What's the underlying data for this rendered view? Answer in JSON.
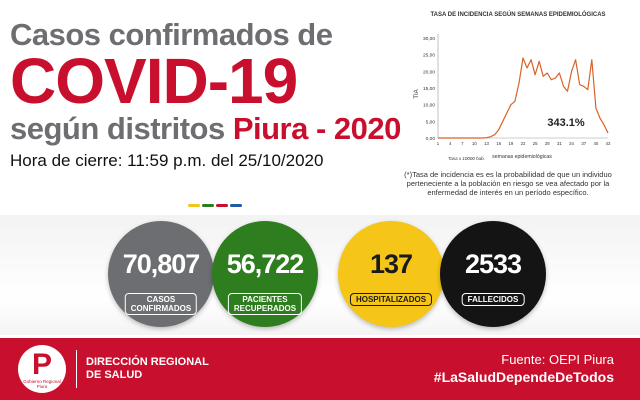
{
  "headline": {
    "line1": "Casos confirmados de",
    "line2": "COVID-19",
    "line3_prefix": "según distritos",
    "line3_highlight": "Piura - 2020",
    "closing_time": "Hora de cierre: 11:59 p.m. del 25/10/2020"
  },
  "chart_data": {
    "type": "line",
    "title": "TASA DE INCIDENCIA SEGÚN SEMANAS EPIDEMIOLÓGICAS",
    "xlabel": "semanas epidemiológicas",
    "ylabel": "TIA",
    "note": "Tasa x 10000 hab.",
    "annotation": "343.1%",
    "ylim": [
      0,
      30
    ],
    "y_ticks": [
      "0,00",
      "5,00",
      "10,00",
      "15,00",
      "20,00",
      "25,00",
      "30,00"
    ],
    "x_ticks": [
      "1",
      "4",
      "7",
      "10",
      "13",
      "16",
      "19",
      "22",
      "25",
      "28",
      "31",
      "34",
      "37",
      "40",
      "43"
    ],
    "x": [
      1,
      2,
      3,
      4,
      5,
      6,
      7,
      8,
      9,
      10,
      11,
      12,
      13,
      14,
      15,
      16,
      17,
      18,
      19,
      20,
      21,
      22,
      23,
      24,
      25,
      26,
      27,
      28,
      29,
      30,
      31,
      32,
      33,
      34,
      35,
      36,
      37,
      38,
      39,
      40,
      41,
      42,
      43
    ],
    "values": [
      0,
      0,
      0,
      0,
      0,
      0,
      0,
      0,
      0,
      0,
      0,
      0,
      0.1,
      0.4,
      1,
      2.5,
      5,
      7.5,
      10,
      11,
      16.5,
      24,
      21,
      23.5,
      19,
      23,
      18.5,
      19.5,
      17.5,
      18,
      19.5,
      15.5,
      14,
      20,
      23.5,
      16,
      15.5,
      14.5,
      23.5,
      9,
      6,
      4,
      1.5
    ],
    "color": "#d9622b"
  },
  "footnote": "(*)Tasa de incidencia es es la probabilidad de que un individuo perteneciente a la población en riesgo se vea afectado por la enfermedad de interés en un período específico.",
  "stats": [
    {
      "value": "70,807",
      "label1": "CASOS",
      "label2": "CONFIRMADOS",
      "bg": "#6d6e71",
      "fg": "#ffffff"
    },
    {
      "value": "56,722",
      "label1": "PACIENTES",
      "label2": "RECUPERADOS",
      "bg": "#2e7d1e",
      "fg": "#ffffff"
    },
    {
      "value": "137",
      "label1": "HOSPITALIZADOS",
      "label2": "",
      "bg": "#f5c518",
      "fg": "#1a1a1a"
    },
    {
      "value": "2533",
      "label1": "FALLECIDOS",
      "label2": "",
      "bg": "#141414",
      "fg": "#ffffff"
    }
  ],
  "footer": {
    "logo_letter": "P",
    "logo_sub": "Gobierno Regional Piura",
    "org_line1": "DIRECCIÓN REGIONAL",
    "org_line2": "DE SALUD",
    "source": "Fuente: OEPI Piura",
    "hashtag": "#LaSaludDependeDeTodos"
  },
  "colors": {
    "brand_red": "#c8102e",
    "headline_gray": "#6d6e71",
    "dots": [
      "#f5c518",
      "#2e7d1e",
      "#c8102e",
      "#1e5aa8"
    ]
  }
}
